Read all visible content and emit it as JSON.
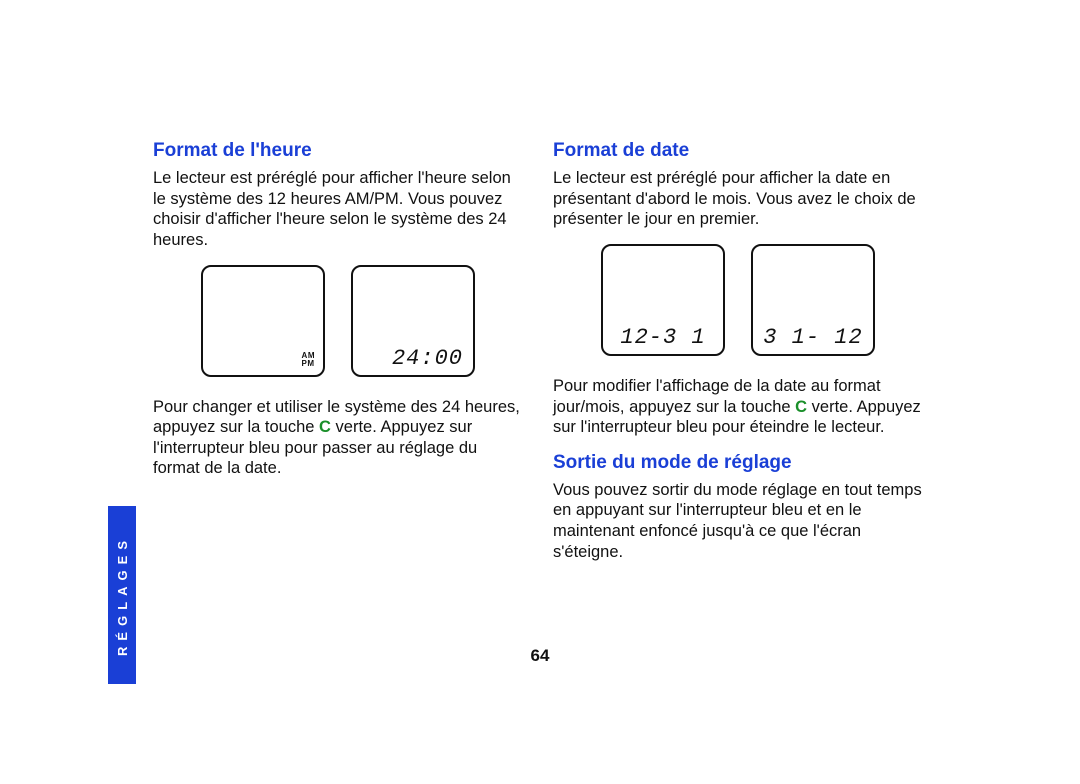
{
  "colors": {
    "accent": "#1a3fd6",
    "green": "#1a8f2a",
    "text": "#111111",
    "bg": "#ffffff"
  },
  "sideTab": {
    "label": "RÉGLAGES"
  },
  "pageNumber": "64",
  "left": {
    "heading": "Format de l'heure",
    "p1": "Le lecteur est préréglé pour afficher l'heure selon le système des 12 heures AM/PM. Vous pouvez choisir d'afficher l'heure selon le système des 24 heures.",
    "screens": {
      "ampm": {
        "line1": "AM",
        "line2": "PM"
      },
      "time24": "24:00"
    },
    "p2_a": "Pour changer et utiliser le système des 24 heures, appuyez sur la touche ",
    "p2_c": "C",
    "p2_b": " verte. Appuyez sur l'interrupteur bleu pour passer au réglage du format de la date."
  },
  "right": {
    "heading1": "Format de date",
    "p1": "Le lecteur est préréglé pour afficher la date en présentant d'abord le mois. Vous avez le choix de présenter le jour en premier.",
    "screens": {
      "md": "12-3 1",
      "dm": "3 1- 12"
    },
    "p2_a": "Pour modifier l'affichage de la date au format jour/mois, appuyez sur la touche ",
    "p2_c": "C",
    "p2_b": " verte. Appuyez sur l'interrupteur bleu pour éteindre le lecteur.",
    "heading2": "Sortie du mode de réglage",
    "p3": "Vous pouvez sortir du mode réglage en tout temps en appuyant sur l'interrupteur bleu et en le maintenant enfoncé jusqu'à ce que l'écran s'éteigne."
  }
}
